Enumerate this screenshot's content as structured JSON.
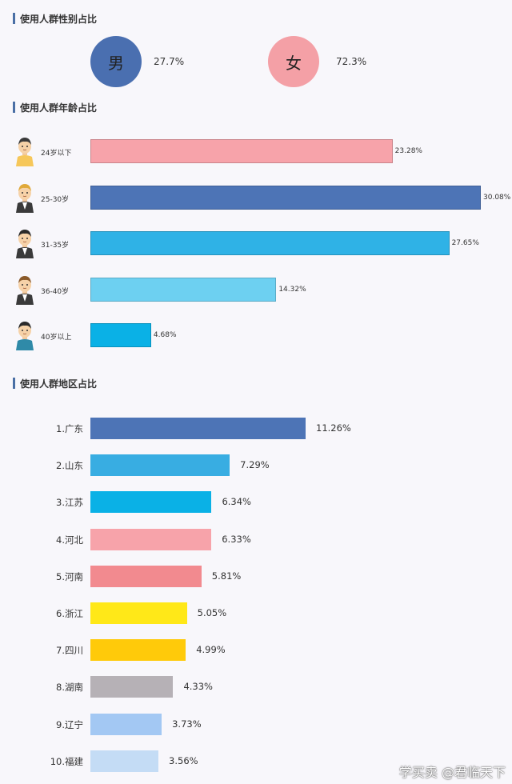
{
  "sections": {
    "gender_title": "使用人群性别占比",
    "age_title": "使用人群年龄占比",
    "region_title": "使用人群地区占比"
  },
  "gender": {
    "male": {
      "label": "男",
      "pct": "27.7%",
      "color": "#4a6fb0"
    },
    "female": {
      "label": "女",
      "pct": "72.3%",
      "color": "#f4a0a6"
    }
  },
  "watermark": "学买卖 @君临天下",
  "chart_data": [
    {
      "type": "bar",
      "orientation": "horizontal",
      "title": "使用人群年龄占比",
      "categories": [
        "24岁以下",
        "25-30岁",
        "31-35岁",
        "36-40岁",
        "40岁以上"
      ],
      "values": [
        23.28,
        30.08,
        27.65,
        14.32,
        4.68
      ],
      "value_labels": [
        "23.28%",
        "30.08%",
        "27.65%",
        "14.32%",
        "4.68%"
      ],
      "colors": [
        "#f7a3aa",
        "#4d74b6",
        "#2fb2e6",
        "#6dd0f1",
        "#0ab1e6"
      ],
      "icons": [
        "young-man-avatar-icon",
        "blond-man-avatar-icon",
        "suited-man-avatar-icon",
        "mustache-man-avatar-icon",
        "older-man-avatar-icon"
      ],
      "xlim": [
        0,
        30.08
      ]
    },
    {
      "type": "bar",
      "orientation": "horizontal",
      "title": "使用人群地区占比",
      "categories": [
        "1.广东",
        "2.山东",
        "3.江苏",
        "4.河北",
        "5.河南",
        "6.浙江",
        "7.四川",
        "8.湖南",
        "9.辽宁",
        "10.福建"
      ],
      "values": [
        11.26,
        7.29,
        6.34,
        6.33,
        5.81,
        5.05,
        4.99,
        4.33,
        3.73,
        3.56
      ],
      "value_labels": [
        "11.26%",
        "7.29%",
        "6.34%",
        "6.33%",
        "5.81%",
        "5.05%",
        "4.99%",
        "4.33%",
        "3.73%",
        "3.56%"
      ],
      "colors": [
        "#4d74b6",
        "#38ade2",
        "#0ab1e6",
        "#f7a3aa",
        "#f28a8f",
        "#ffe818",
        "#ffca0a",
        "#b6b1b6",
        "#a3c8f3",
        "#c4dcf5"
      ],
      "xlim": [
        0,
        11.26
      ]
    }
  ]
}
